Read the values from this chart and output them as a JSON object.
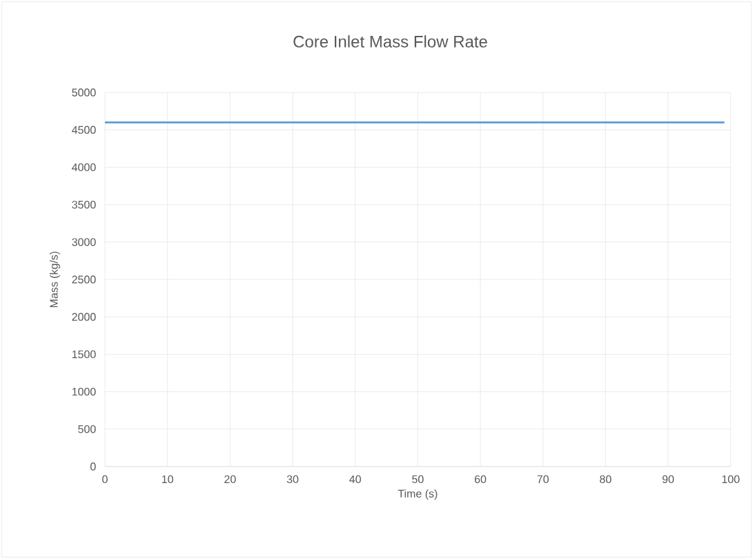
{
  "chart_data": {
    "type": "line",
    "title": "Core Inlet Mass Flow Rate",
    "xlabel": "Time (s)",
    "ylabel": "Mass (kg/s)",
    "x": [
      0,
      99
    ],
    "series": [
      {
        "color": "#5b9bd5",
        "values": [
          4600,
          4600
        ]
      }
    ],
    "xlim": [
      0,
      100
    ],
    "xticks": [
      0,
      10,
      20,
      30,
      40,
      50,
      60,
      70,
      80,
      90,
      100
    ],
    "ylim": [
      0,
      5000
    ],
    "yticks": [
      0,
      500,
      1000,
      1500,
      2000,
      2500,
      3000,
      3500,
      4000,
      4500,
      5000
    ],
    "grid": true,
    "marker": "none",
    "line_style": "solid"
  }
}
